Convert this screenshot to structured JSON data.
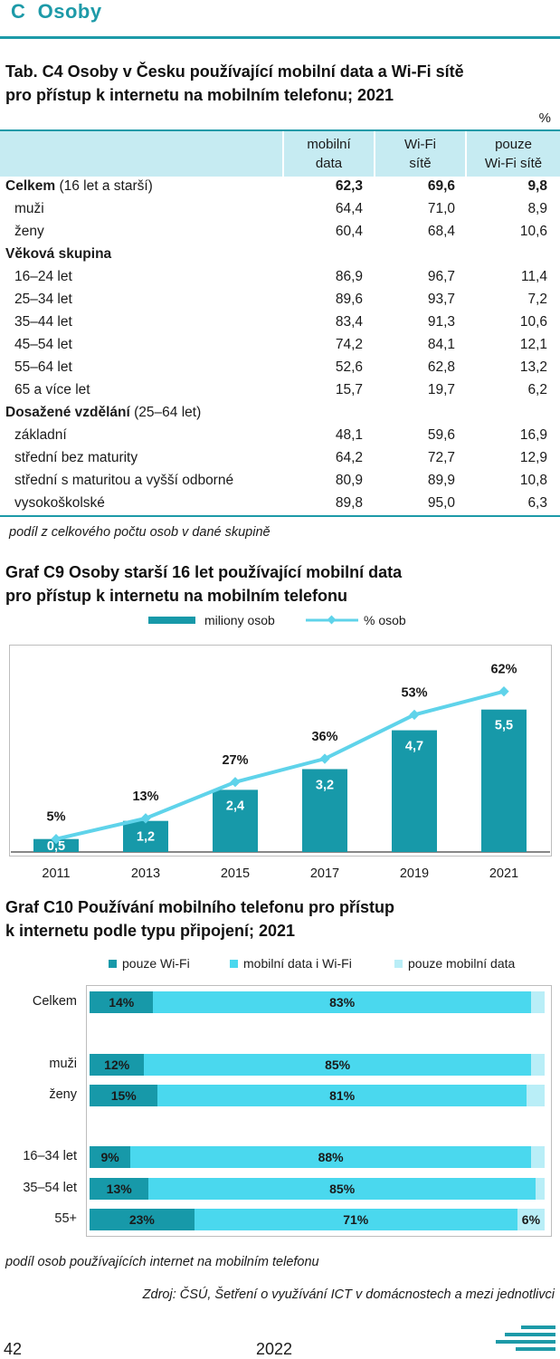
{
  "section": {
    "letter": "C",
    "title": "Osoby"
  },
  "table": {
    "title_line1": "Tab. C4 Osoby v Česku používající mobilní data a Wi-Fi sítě",
    "title_line2": "pro přístup k internetu na mobilním telefonu; 2021",
    "unit": "%",
    "columns": [
      {
        "line1": "mobilní",
        "line2": "data"
      },
      {
        "line1": "Wi-Fi",
        "line2": "sítě"
      },
      {
        "line1": "pouze",
        "line2": "Wi-Fi sítě"
      }
    ],
    "rows": [
      {
        "label_bold": "Celkem",
        "label_rest": " (16 let a starší)",
        "values": [
          "62,3",
          "69,6",
          "9,8"
        ],
        "bold": true,
        "indent": false
      },
      {
        "label": "muži",
        "values": [
          "64,4",
          "71,0",
          "8,9"
        ],
        "indent": true
      },
      {
        "label": "ženy",
        "values": [
          "60,4",
          "68,4",
          "10,6"
        ],
        "indent": true
      },
      {
        "label_bold": "Věková skupina",
        "label_rest": "",
        "values": [
          "",
          "",
          ""
        ],
        "indent": false
      },
      {
        "label": "16–24 let",
        "values": [
          "86,9",
          "96,7",
          "11,4"
        ],
        "indent": true
      },
      {
        "label": "25–34 let",
        "values": [
          "89,6",
          "93,7",
          "7,2"
        ],
        "indent": true
      },
      {
        "label": "35–44 let",
        "values": [
          "83,4",
          "91,3",
          "10,6"
        ],
        "indent": true
      },
      {
        "label": "45–54 let",
        "values": [
          "74,2",
          "84,1",
          "12,1"
        ],
        "indent": true
      },
      {
        "label": "55–64 let",
        "values": [
          "52,6",
          "62,8",
          "13,2"
        ],
        "indent": true
      },
      {
        "label": "65 a více let",
        "values": [
          "15,7",
          "19,7",
          "6,2"
        ],
        "indent": true
      },
      {
        "label_bold": "Dosažené vzdělání",
        "label_rest": " (25–64 let)",
        "values": [
          "",
          "",
          ""
        ],
        "indent": false
      },
      {
        "label": "základní",
        "values": [
          "48,1",
          "59,6",
          "16,9"
        ],
        "indent": true
      },
      {
        "label": "střední bez maturity",
        "values": [
          "64,2",
          "72,7",
          "12,9"
        ],
        "indent": true
      },
      {
        "label": "střední s maturitou a vyšší odborné",
        "values": [
          "80,9",
          "89,9",
          "10,8"
        ],
        "indent": true
      },
      {
        "label": "vysokoškolské",
        "values": [
          "89,8",
          "95,0",
          "6,3"
        ],
        "indent": true
      }
    ],
    "note": "podíl z celkového počtu osob v dané skupině"
  },
  "chart_data": [
    {
      "type": "bar",
      "title_line1": "Graf C9 Osoby starší 16 let používající mobilní data",
      "title_line2": "pro přístup k internetu na mobilním telefonu",
      "categories": [
        "2011",
        "2013",
        "2015",
        "2017",
        "2019",
        "2021"
      ],
      "series": [
        {
          "name": "miliony osob",
          "kind": "bar",
          "values": [
            0.5,
            1.2,
            2.4,
            3.2,
            4.7,
            5.5
          ],
          "labels": [
            "0,5",
            "1,2",
            "2,4",
            "3,2",
            "4,7",
            "5,5"
          ],
          "color": "#1799a9"
        },
        {
          "name": "% osob",
          "kind": "line",
          "values": [
            5,
            13,
            27,
            36,
            53,
            62
          ],
          "labels": [
            "5%",
            "13%",
            "27%",
            "36%",
            "53%",
            "62%"
          ],
          "color": "#5fd3ea"
        }
      ],
      "legend": "top-center",
      "grid": false
    },
    {
      "type": "bar",
      "orientation": "horizontal-stacked",
      "title_line1": "Graf C10 Používání mobilního telefonu pro přístup",
      "title_line2": "k internetu podle typu připojení; 2021",
      "categories": [
        "Celkem",
        "muži",
        "ženy",
        "16–34 let",
        "35–54 let",
        "55+"
      ],
      "series": [
        {
          "name": "pouze Wi-Fi",
          "values": [
            14,
            12,
            15,
            9,
            13,
            23
          ],
          "color": "#1799a9"
        },
        {
          "name": "mobilní data i Wi-Fi",
          "values": [
            83,
            85,
            81,
            88,
            85,
            71
          ],
          "color": "#4ad8ee"
        },
        {
          "name": "pouze mobilní data",
          "values": [
            3,
            3,
            4,
            3,
            2,
            6
          ],
          "color": "#b9eef7"
        }
      ],
      "shown_labels": [
        [
          "14%",
          "83%",
          ""
        ],
        [
          "12%",
          "85%",
          ""
        ],
        [
          "15%",
          "81%",
          ""
        ],
        [
          "9%",
          "88%",
          ""
        ],
        [
          "13%",
          "85%",
          ""
        ],
        [
          "23%",
          "71%",
          "6%"
        ]
      ],
      "xlim": [
        0,
        100
      ],
      "legend": "top-center",
      "note": "podíl osob používajících internet na mobilním telefonu"
    }
  ],
  "source": "Zdroj: ČSÚ, Šetření o využívání ICT v domácnostech a mezi jednotlivci",
  "footer": {
    "page": "42",
    "year": "2022"
  }
}
